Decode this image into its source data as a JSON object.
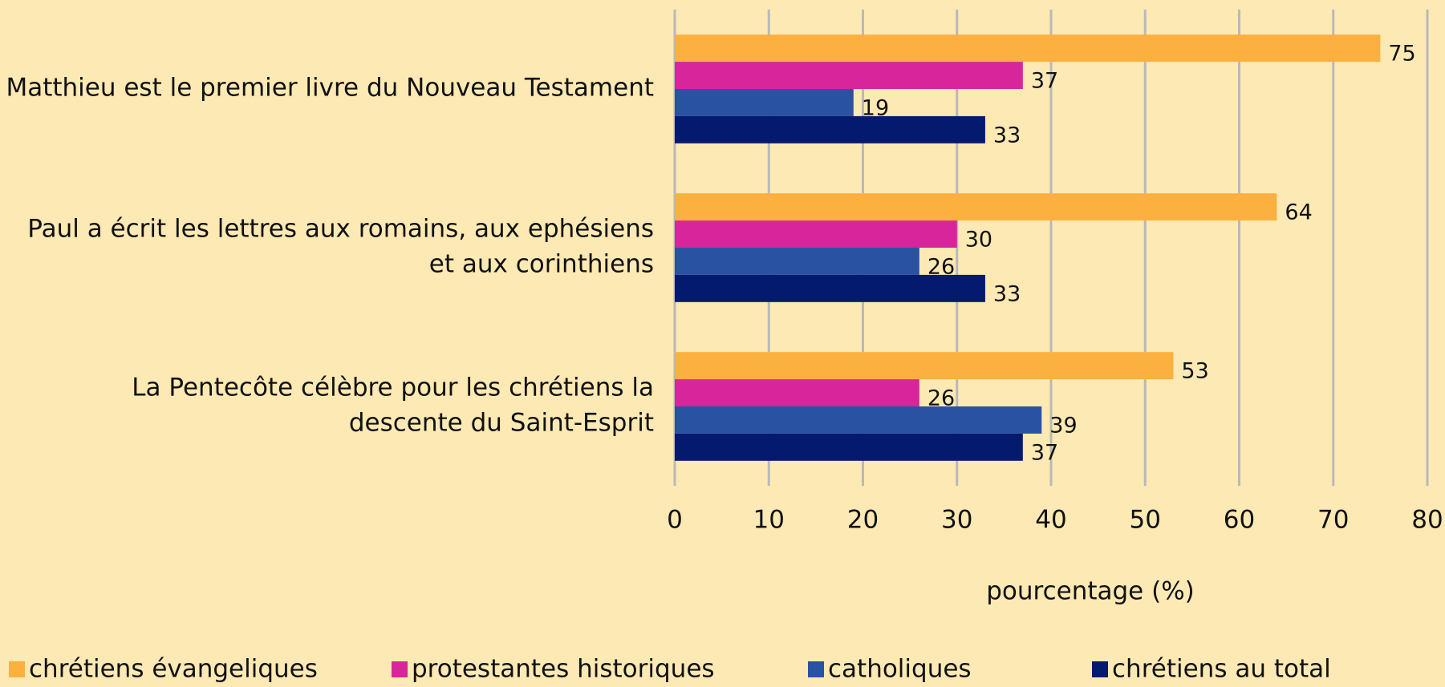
{
  "chart_data": {
    "type": "hbar",
    "categories": [
      [
        "Matthieu est le premier livre du Nouveau Testament"
      ],
      [
        "Paul a écrit les lettres aux romains, aux ephésiens",
        "et aux corinthiens"
      ],
      [
        "La Pentecôte célèbre pour les chrétiens la",
        "descente du Saint-Esprit"
      ]
    ],
    "series": [
      {
        "name": "chrétiens évangeliques",
        "color": "#fbb040",
        "values": [
          75,
          64,
          53
        ]
      },
      {
        "name": "protestantes historiques",
        "color": "#d9259b",
        "values": [
          37,
          30,
          26
        ]
      },
      {
        "name": "catholiques",
        "color": "#2a52a3",
        "values": [
          19,
          26,
          39
        ]
      },
      {
        "name": "chrétiens au total",
        "color": "#041a6e",
        "values": [
          33,
          33,
          37
        ]
      }
    ],
    "xlabel": "pourcentage (%)",
    "xlim": [
      0,
      80
    ],
    "xticks": [
      0,
      10,
      20,
      30,
      40,
      50,
      60,
      70,
      80
    ],
    "grid": true,
    "legend": "bottom"
  }
}
